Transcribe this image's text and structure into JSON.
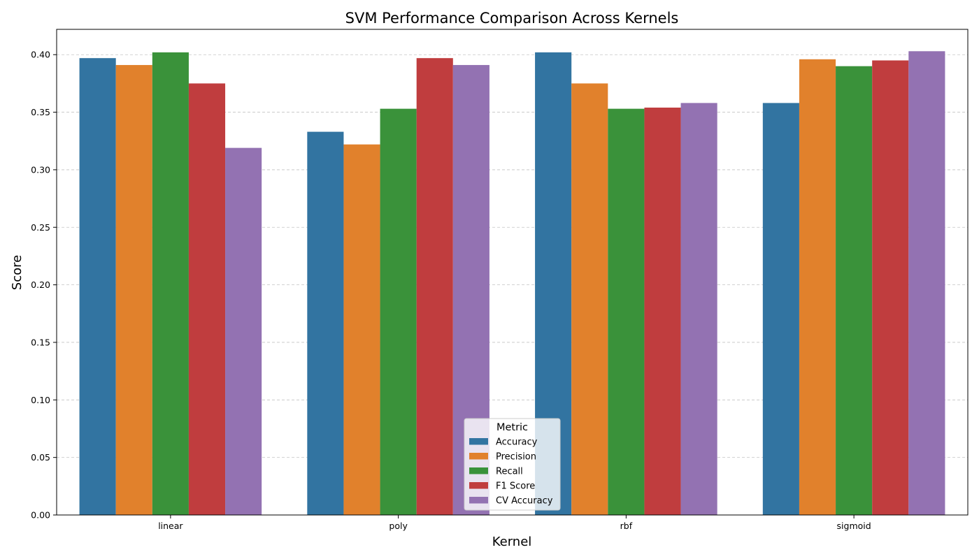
{
  "chart_data": {
    "type": "bar",
    "title": "SVM Performance Comparison Across Kernels",
    "xlabel": "Kernel",
    "ylabel": "Score",
    "categories": [
      "linear",
      "poly",
      "rbf",
      "sigmoid"
    ],
    "ylim": [
      0,
      0.422
    ],
    "yticks": [
      0.0,
      0.05,
      0.1,
      0.15,
      0.2,
      0.25,
      0.3,
      0.35,
      0.4
    ],
    "ytick_labels": [
      "0.00",
      "0.05",
      "0.10",
      "0.15",
      "0.20",
      "0.25",
      "0.30",
      "0.35",
      "0.40"
    ],
    "grid": {
      "y": true,
      "x": false,
      "style": "dashed"
    },
    "legend": {
      "title": "Metric",
      "placement": "lower center"
    },
    "series": [
      {
        "name": "Accuracy",
        "color": "#3274a1",
        "values": [
          0.397,
          0.333,
          0.402,
          0.358
        ]
      },
      {
        "name": "Precision",
        "color": "#e1812c",
        "values": [
          0.391,
          0.322,
          0.375,
          0.396
        ]
      },
      {
        "name": "Recall",
        "color": "#3a923a",
        "values": [
          0.402,
          0.353,
          0.353,
          0.39
        ]
      },
      {
        "name": "F1 Score",
        "color": "#c03d3e",
        "values": [
          0.375,
          0.397,
          0.354,
          0.395
        ]
      },
      {
        "name": "CV Accuracy",
        "color": "#9372b2",
        "values": [
          0.319,
          0.391,
          0.358,
          0.403
        ]
      }
    ]
  }
}
